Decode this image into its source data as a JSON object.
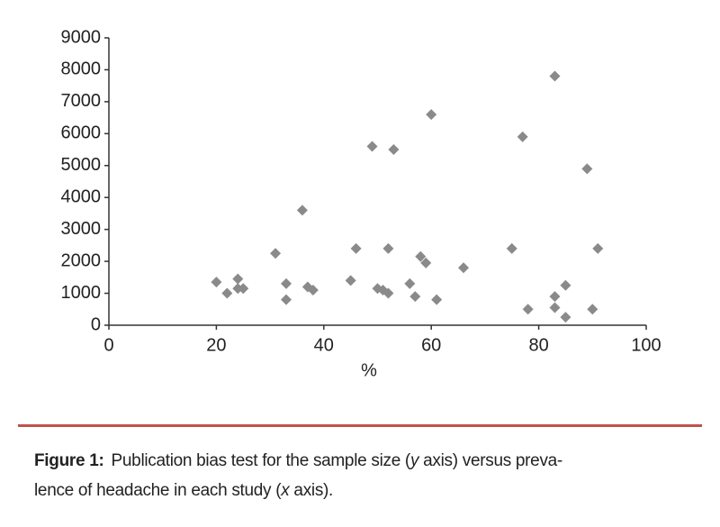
{
  "chart_data": {
    "type": "scatter",
    "x_label": "%",
    "x": [
      20,
      22,
      24,
      24,
      25,
      31,
      33,
      33,
      36,
      37,
      38,
      45,
      46,
      49,
      50,
      51,
      52,
      52,
      53,
      56,
      57,
      58,
      59,
      60,
      61,
      66,
      75,
      77,
      78,
      83,
      83,
      83,
      85,
      85,
      89,
      90,
      91
    ],
    "values": [
      1350,
      1000,
      1450,
      1150,
      1150,
      2250,
      1300,
      800,
      3600,
      1200,
      1100,
      1400,
      2400,
      5600,
      1150,
      1100,
      1000,
      2400,
      5500,
      1300,
      900,
      2150,
      1950,
      6600,
      800,
      1800,
      2400,
      5900,
      500,
      7800,
      900,
      550,
      1250,
      250,
      4900,
      500,
      2400
    ],
    "color": "#8a8a8a",
    "xlim": [
      0,
      100
    ],
    "xticks": [
      0,
      20,
      40,
      60,
      80,
      100
    ],
    "ylim": [
      0,
      9000
    ],
    "yticks": [
      0,
      1000,
      2000,
      3000,
      4000,
      5000,
      6000,
      7000,
      8000,
      9000
    ]
  },
  "caption": {
    "label": "Figure 1:",
    "line1": [
      "Publication  bias test for the sample size (",
      "y",
      " axis) versus preva-"
    ],
    "line2": [
      "lence of headache in each study (",
      "x",
      " axis)."
    ]
  }
}
